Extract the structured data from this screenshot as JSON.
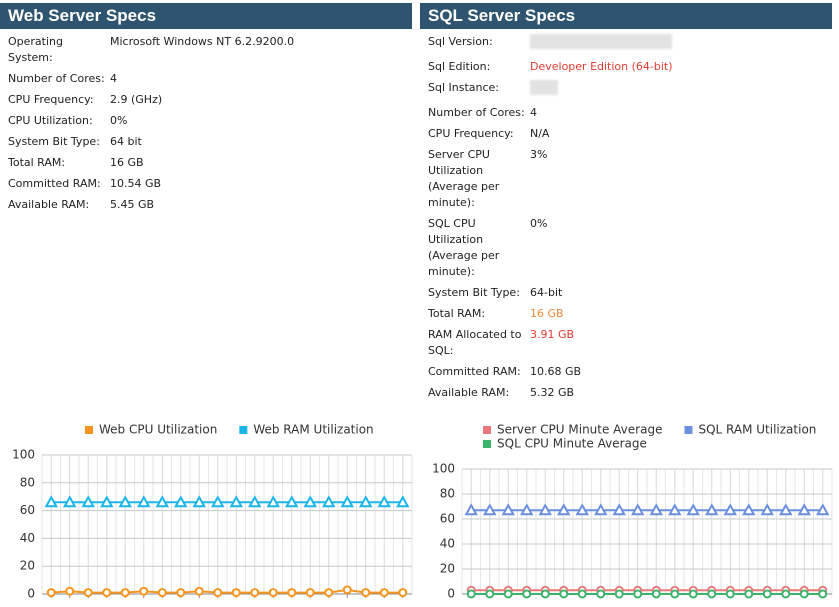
{
  "web_specs": {
    "title": "Web Server Specs",
    "rows": [
      {
        "label": "Operating System:",
        "value": "Microsoft Windows NT 6.2.9200.0"
      },
      {
        "label": "Number of Cores:",
        "value": "4"
      },
      {
        "label": "CPU Frequency:",
        "value": "2.9 (GHz)"
      },
      {
        "label": "CPU Utilization:",
        "value": "0%"
      },
      {
        "label": "System Bit Type:",
        "value": "64 bit"
      },
      {
        "label": "Total RAM:",
        "value": "16 GB"
      },
      {
        "label": "Committed RAM:",
        "value": "10.54 GB"
      },
      {
        "label": "Available RAM:",
        "value": "5.45 GB"
      }
    ]
  },
  "sql_specs": {
    "title": "SQL Server Specs",
    "rows": [
      {
        "label": "Sql Version:",
        "value": null
      },
      {
        "label": "Sql Edition:",
        "value": "Developer Edition (64-bit)",
        "color": "#e03c31"
      },
      {
        "label": "Sql Instance:",
        "value": null
      },
      {
        "label": "Number of Cores:",
        "value": "4"
      },
      {
        "label": "CPU Frequency:",
        "value": "N/A"
      },
      {
        "label": "Server CPU Utilization (Average per minute):",
        "value": "3%"
      },
      {
        "label": "SQL CPU Utilization (Average per minute):",
        "value": "0%"
      },
      {
        "label": "System Bit Type:",
        "value": "64-bit"
      },
      {
        "label": "Total RAM:",
        "value": "16 GB",
        "color": "#f08a3c"
      },
      {
        "label": "RAM Allocated to SQL:",
        "value": "3.91 GB",
        "color": "#e03c31"
      },
      {
        "label": "Committed RAM:",
        "value": "10.68 GB"
      },
      {
        "label": "Available RAM:",
        "value": "5.32 GB"
      }
    ]
  },
  "chart_data": [
    {
      "type": "line",
      "legend": "top",
      "grid": true,
      "categories": [
        null,
        null,
        null,
        null,
        null,
        null,
        null,
        null,
        null,
        null,
        null,
        null,
        null,
        null,
        null,
        null,
        null,
        null,
        null,
        null
      ],
      "ylim": [
        0,
        100
      ],
      "yticks": [
        0,
        20,
        40,
        60,
        80,
        100
      ],
      "series": [
        {
          "name": "Web CPU Utilization",
          "color": "#f7941d",
          "marker": "circle",
          "values": [
            1,
            2,
            1,
            1,
            1,
            2,
            1,
            1,
            2,
            1,
            1,
            1,
            1,
            1,
            1,
            1,
            3,
            1,
            1,
            1
          ]
        },
        {
          "name": "Web RAM Utilization",
          "color": "#1cb5e8",
          "marker": "triangle",
          "values": [
            66,
            66,
            66,
            66,
            66,
            66,
            66,
            66,
            66,
            66,
            66,
            66,
            66,
            66,
            66,
            66,
            66,
            66,
            66,
            66
          ]
        }
      ]
    },
    {
      "type": "line",
      "legend": "top",
      "grid": true,
      "categories": [
        null,
        null,
        null,
        null,
        null,
        null,
        null,
        null,
        null,
        null,
        null,
        null,
        null,
        null,
        null,
        null,
        null,
        null,
        null,
        null
      ],
      "ylim": [
        0,
        100
      ],
      "yticks": [
        0,
        20,
        40,
        60,
        80,
        100
      ],
      "series": [
        {
          "name": "Server CPU Minute Average",
          "color": "#e8787a",
          "marker": "circle",
          "values": [
            3,
            3,
            3,
            3,
            3,
            3,
            3,
            3,
            3,
            3,
            3,
            3,
            3,
            3,
            3,
            3,
            3,
            3,
            3,
            3
          ]
        },
        {
          "name": "SQL RAM Utilization",
          "color": "#6b8fde",
          "marker": "triangle",
          "values": [
            67,
            67,
            67,
            67,
            67,
            67,
            67,
            67,
            67,
            67,
            67,
            67,
            67,
            67,
            67,
            67,
            67,
            67,
            67,
            67
          ]
        },
        {
          "name": "SQL CPU Minute Average",
          "color": "#3bb36b",
          "marker": "circle",
          "values": [
            0,
            0,
            0,
            0,
            0,
            0,
            0,
            0,
            0,
            0,
            0,
            0,
            0,
            0,
            0,
            0,
            0,
            0,
            0,
            0
          ]
        }
      ]
    }
  ]
}
